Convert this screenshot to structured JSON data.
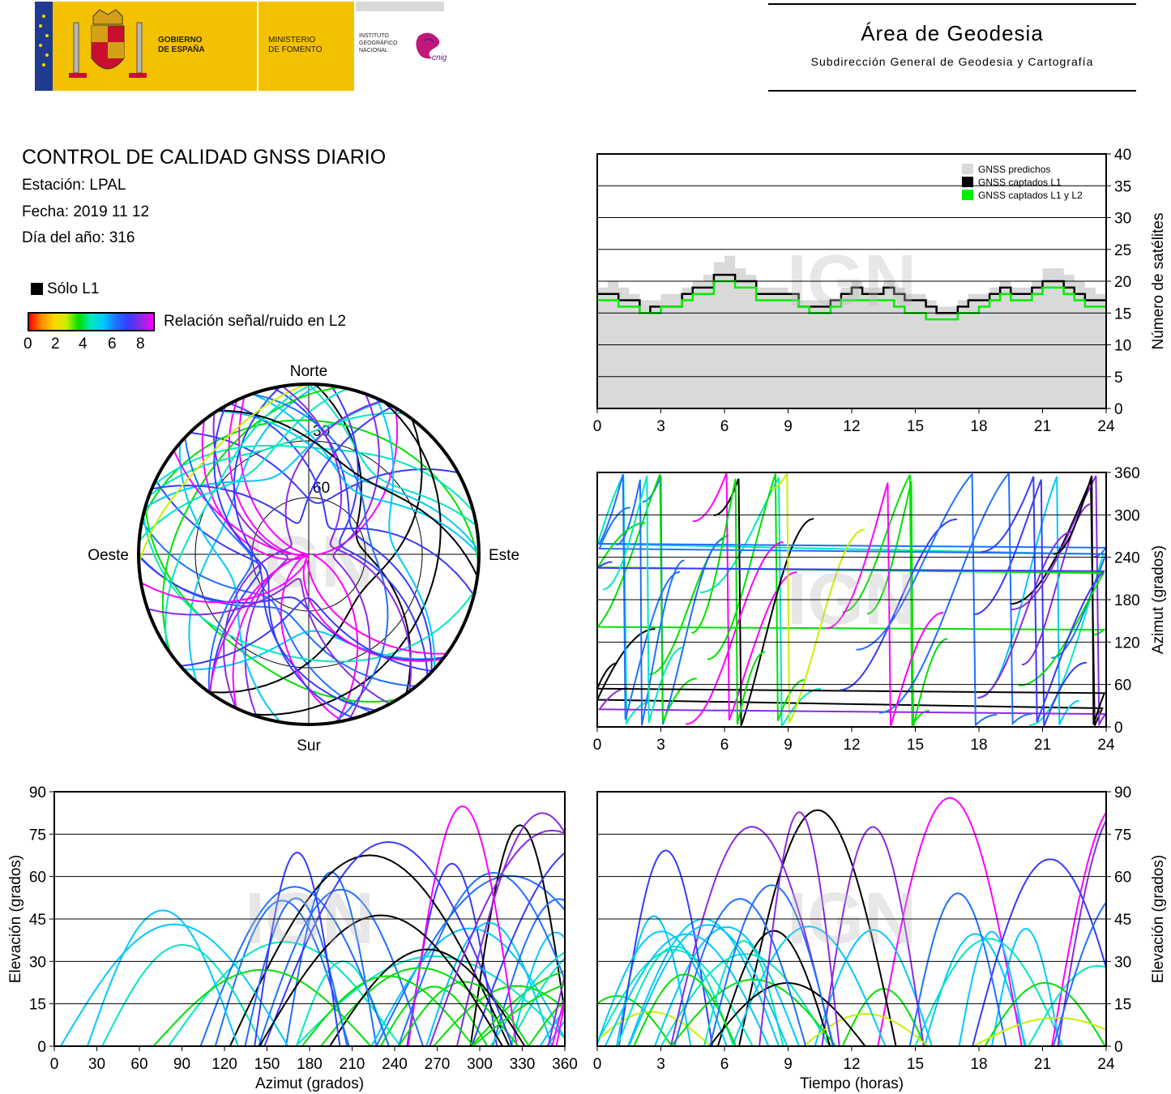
{
  "header": {
    "logo_gov_line1": "GOBIERNO",
    "logo_gov_line2": "DE ESPAÑA",
    "logo_min_line1": "MINISTERIO",
    "logo_min_line2": "DE FOMENTO",
    "logo_ign_line1": "INSTITUTO",
    "logo_ign_line2": "GEOGRÁFICO",
    "logo_ign_line3": "NACIONAL",
    "logo_cnig": "cnig",
    "area_title": "Área de Geodesia",
    "area_subtitle": "Subdirección General de Geodesia y Cartografía"
  },
  "report": {
    "title": "CONTROL DE CALIDAD GNSS DIARIO",
    "station": "Estación: LPAL",
    "date": "Fecha: 2019 11 12",
    "doy": "Día del año: 316"
  },
  "legend": {
    "l1_only": "Sólo L1",
    "snr_label": "Relación señal/ruido en L2",
    "snr_ticks": [
      "0",
      "2",
      "4",
      "6",
      "8"
    ]
  },
  "watermark": "IGN",
  "colors": {
    "l1_only": "#000000",
    "predicted": "#d9d9d9",
    "captured_l1": "#000000",
    "captured_l1_l2": "#00ee00",
    "snr_scale": [
      "#ff0000",
      "#ff8c00",
      "#ffd700",
      "#c8f000",
      "#00e000",
      "#00e8c0",
      "#00c8ff",
      "#2070ff",
      "#3a3aff",
      "#8a2be2",
      "#ff00ff"
    ]
  },
  "chart_data": [
    {
      "type": "polar",
      "id": "skyplot",
      "direction_labels": {
        "north": "Norte",
        "south": "Sur",
        "west": "Oeste",
        "east": "Este"
      },
      "elevation_ring_labels": [
        "30",
        "60"
      ],
      "elevation_rings": [
        30,
        60
      ]
    },
    {
      "type": "area",
      "id": "satellite-count",
      "ylabel": "Número de satélites",
      "xlim": [
        0,
        24
      ],
      "ylim": [
        0,
        40
      ],
      "x_ticks": [
        "0",
        "3",
        "6",
        "9",
        "12",
        "15",
        "18",
        "21",
        "24"
      ],
      "y_ticks": [
        "0",
        "5",
        "10",
        "15",
        "20",
        "25",
        "30",
        "35",
        "40"
      ],
      "legend": [
        "GNSS predichos",
        "GNSS captados L1",
        "GNSS captados L1 y L2"
      ],
      "legend_position": "top-right",
      "grid": true,
      "x": [
        0,
        0.5,
        1,
        1.5,
        2,
        2.5,
        3,
        3.5,
        4,
        4.5,
        5,
        5.5,
        6,
        6.5,
        7,
        7.5,
        8,
        8.5,
        9,
        9.5,
        10,
        10.5,
        11,
        11.5,
        12,
        12.5,
        13,
        13.5,
        14,
        14.5,
        15,
        15.5,
        16,
        16.5,
        17,
        17.5,
        18,
        18.5,
        19,
        19.5,
        20,
        20.5,
        21,
        21.5,
        22,
        22.5,
        23,
        23.5,
        24
      ],
      "series": [
        {
          "name": "GNSS predichos",
          "values": [
            19,
            20,
            19,
            18,
            17,
            17,
            18,
            18,
            19,
            20,
            21,
            23,
            24,
            22,
            21,
            19,
            19,
            19,
            18,
            17,
            17,
            17,
            17,
            19,
            20,
            19,
            19,
            20,
            19,
            18,
            18,
            17,
            16,
            16,
            17,
            18,
            18,
            19,
            20,
            19,
            19,
            20,
            22,
            22,
            21,
            20,
            19,
            18,
            18
          ]
        },
        {
          "name": "GNSS captados L1",
          "values": [
            18,
            18,
            17,
            17,
            15,
            16,
            16,
            16,
            18,
            19,
            19,
            21,
            21,
            20,
            20,
            18,
            18,
            18,
            18,
            16,
            16,
            16,
            17,
            18,
            19,
            18,
            18,
            19,
            18,
            17,
            17,
            16,
            15,
            15,
            16,
            17,
            17,
            18,
            19,
            18,
            18,
            19,
            20,
            20,
            19,
            18,
            17,
            17,
            17
          ]
        },
        {
          "name": "GNSS captados L1 y L2",
          "values": [
            17,
            17,
            16,
            16,
            15,
            15,
            16,
            16,
            17,
            18,
            18,
            20,
            20,
            19,
            19,
            17,
            17,
            17,
            17,
            16,
            15,
            15,
            16,
            17,
            17,
            17,
            17,
            17,
            16,
            15,
            15,
            14,
            14,
            14,
            15,
            15,
            16,
            17,
            18,
            17,
            17,
            18,
            19,
            19,
            18,
            17,
            16,
            16,
            16
          ]
        }
      ]
    },
    {
      "type": "scatter",
      "id": "azimuth-time",
      "ylabel": "Azimut (grados)",
      "xlim": [
        0,
        24
      ],
      "ylim": [
        0,
        360
      ],
      "x_ticks": [
        "0",
        "3",
        "6",
        "9",
        "12",
        "15",
        "18",
        "21",
        "24"
      ],
      "y_ticks": [
        "0",
        "60",
        "120",
        "180",
        "240",
        "300",
        "360"
      ],
      "grid": true
    },
    {
      "type": "scatter",
      "id": "elevation-azimuth",
      "xlabel": "Azimut (grados)",
      "ylabel": "Elevación (grados)",
      "xlim": [
        0,
        360
      ],
      "ylim": [
        0,
        90
      ],
      "x_ticks": [
        "0",
        "30",
        "60",
        "90",
        "120",
        "150",
        "180",
        "210",
        "240",
        "270",
        "300",
        "330",
        "360"
      ],
      "y_ticks": [
        "0",
        "15",
        "30",
        "45",
        "60",
        "75",
        "90"
      ],
      "grid": true
    },
    {
      "type": "scatter",
      "id": "elevation-time",
      "xlabel": "Tiempo (horas)",
      "ylabel": "Elevación (grados)",
      "xlim": [
        0,
        24
      ],
      "ylim": [
        0,
        90
      ],
      "x_ticks": [
        "0",
        "3",
        "6",
        "9",
        "12",
        "15",
        "18",
        "21",
        "24"
      ],
      "y_ticks": [
        "0",
        "15",
        "30",
        "45",
        "60",
        "75",
        "90"
      ],
      "grid": true
    }
  ]
}
